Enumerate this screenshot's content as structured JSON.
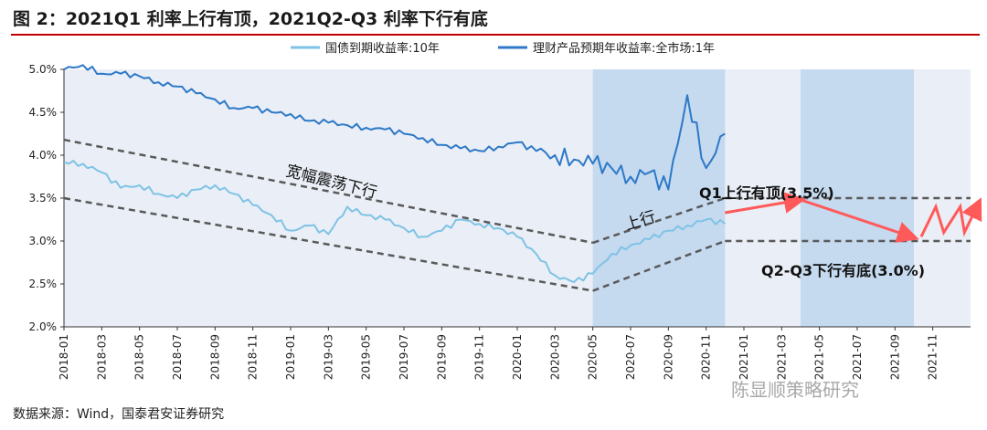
{
  "title": "图 2：2021Q1 利率上行有顶，2021Q2-Q3 利率下行有底",
  "source": "数据来源：Wind，国泰君安证券研究",
  "watermark": "陈显顺策略研究",
  "colors": {
    "bond": "#7ec3e6",
    "wmp": "#2d79c7",
    "shade": "#c5d9ef",
    "plot_bg": "#eaeef6",
    "forecast": "#ff5a5a",
    "trend": "#595959"
  },
  "chart_data": {
    "type": "line",
    "x_ticks": [
      "2018-01",
      "2018-03",
      "2018-05",
      "2018-07",
      "2018-09",
      "2018-11",
      "2019-01",
      "2019-03",
      "2019-05",
      "2019-07",
      "2019-09",
      "2019-11",
      "2020-01",
      "2020-03",
      "2020-05",
      "2020-07",
      "2020-09",
      "2020-11",
      "2021-01",
      "2021-03",
      "2021-05",
      "2021-07",
      "2021-09",
      "2021-11"
    ],
    "x_range": [
      "2018-01",
      "2022-01"
    ],
    "ylim": [
      2.0,
      5.0
    ],
    "y_ticks": [
      "2.0%",
      "2.5%",
      "3.0%",
      "3.5%",
      "4.0%",
      "4.5%",
      "5.0%"
    ],
    "y_tick_values": [
      2.0,
      2.5,
      3.0,
      3.5,
      4.0,
      4.5,
      5.0
    ],
    "legend_position": "top",
    "series": [
      {
        "name": "国债到期收益率:10年",
        "points": [
          [
            "2018-01",
            3.92
          ],
          [
            "2018-02",
            3.9
          ],
          [
            "2018-03",
            3.8
          ],
          [
            "2018-04",
            3.62
          ],
          [
            "2018-05",
            3.65
          ],
          [
            "2018-06",
            3.55
          ],
          [
            "2018-07",
            3.5
          ],
          [
            "2018-08",
            3.6
          ],
          [
            "2018-09",
            3.65
          ],
          [
            "2018-10",
            3.55
          ],
          [
            "2018-11",
            3.42
          ],
          [
            "2018-12",
            3.3
          ],
          [
            "2019-01",
            3.12
          ],
          [
            "2019-02",
            3.18
          ],
          [
            "2019-03",
            3.08
          ],
          [
            "2019-04",
            3.4
          ],
          [
            "2019-05",
            3.3
          ],
          [
            "2019-06",
            3.25
          ],
          [
            "2019-07",
            3.15
          ],
          [
            "2019-08",
            3.05
          ],
          [
            "2019-09",
            3.12
          ],
          [
            "2019-10",
            3.25
          ],
          [
            "2019-11",
            3.2
          ],
          [
            "2019-12",
            3.15
          ],
          [
            "2020-01",
            3.05
          ],
          [
            "2020-02",
            2.85
          ],
          [
            "2020-03",
            2.6
          ],
          [
            "2020-04",
            2.52
          ],
          [
            "2020-05",
            2.62
          ],
          [
            "2020-06",
            2.85
          ],
          [
            "2020-07",
            2.95
          ],
          [
            "2020-08",
            3.02
          ],
          [
            "2020-09",
            3.12
          ],
          [
            "2020-10",
            3.18
          ],
          [
            "2020-11",
            3.25
          ],
          [
            "2020-12",
            3.2
          ]
        ]
      },
      {
        "name": "理财产品预期年收益率:全市场:1年",
        "points": [
          [
            "2018-01",
            5.0
          ],
          [
            "2018-02",
            5.05
          ],
          [
            "2018-03",
            4.95
          ],
          [
            "2018-04",
            4.95
          ],
          [
            "2018-05",
            4.92
          ],
          [
            "2018-06",
            4.85
          ],
          [
            "2018-07",
            4.8
          ],
          [
            "2018-08",
            4.72
          ],
          [
            "2018-09",
            4.65
          ],
          [
            "2018-10",
            4.55
          ],
          [
            "2018-11",
            4.55
          ],
          [
            "2018-12",
            4.5
          ],
          [
            "2019-01",
            4.48
          ],
          [
            "2019-02",
            4.4
          ],
          [
            "2019-03",
            4.38
          ],
          [
            "2019-04",
            4.35
          ],
          [
            "2019-05",
            4.32
          ],
          [
            "2019-06",
            4.3
          ],
          [
            "2019-07",
            4.25
          ],
          [
            "2019-08",
            4.2
          ],
          [
            "2019-09",
            4.12
          ],
          [
            "2019-10",
            4.08
          ],
          [
            "2019-11",
            4.05
          ],
          [
            "2019-12",
            4.1
          ],
          [
            "2020-01",
            4.15
          ],
          [
            "2020-02",
            4.05
          ],
          [
            "2020-03",
            4.0
          ],
          [
            "2020-04",
            3.95
          ],
          [
            "2020-05",
            3.9
          ],
          [
            "2020-06",
            3.85
          ],
          [
            "2020-07",
            3.75
          ],
          [
            "2020-08",
            3.8
          ],
          [
            "2020-09",
            3.6
          ],
          [
            "2020-10",
            4.7
          ],
          [
            "2020-11",
            3.85
          ],
          [
            "2020-12",
            4.25
          ]
        ]
      }
    ],
    "shaded_periods": [
      [
        "2020-05",
        "2020-12"
      ],
      [
        "2021-04",
        "2021-10"
      ]
    ],
    "annotations": {
      "wide_range": "宽幅震荡下行",
      "uptrend": "上行",
      "q1_cap": "Q1上行有顶(3.5%)",
      "q2q3_floor": "Q2-Q3下行有底(3.0%)"
    },
    "levels": {
      "cap": 3.5,
      "floor": 3.0
    }
  }
}
